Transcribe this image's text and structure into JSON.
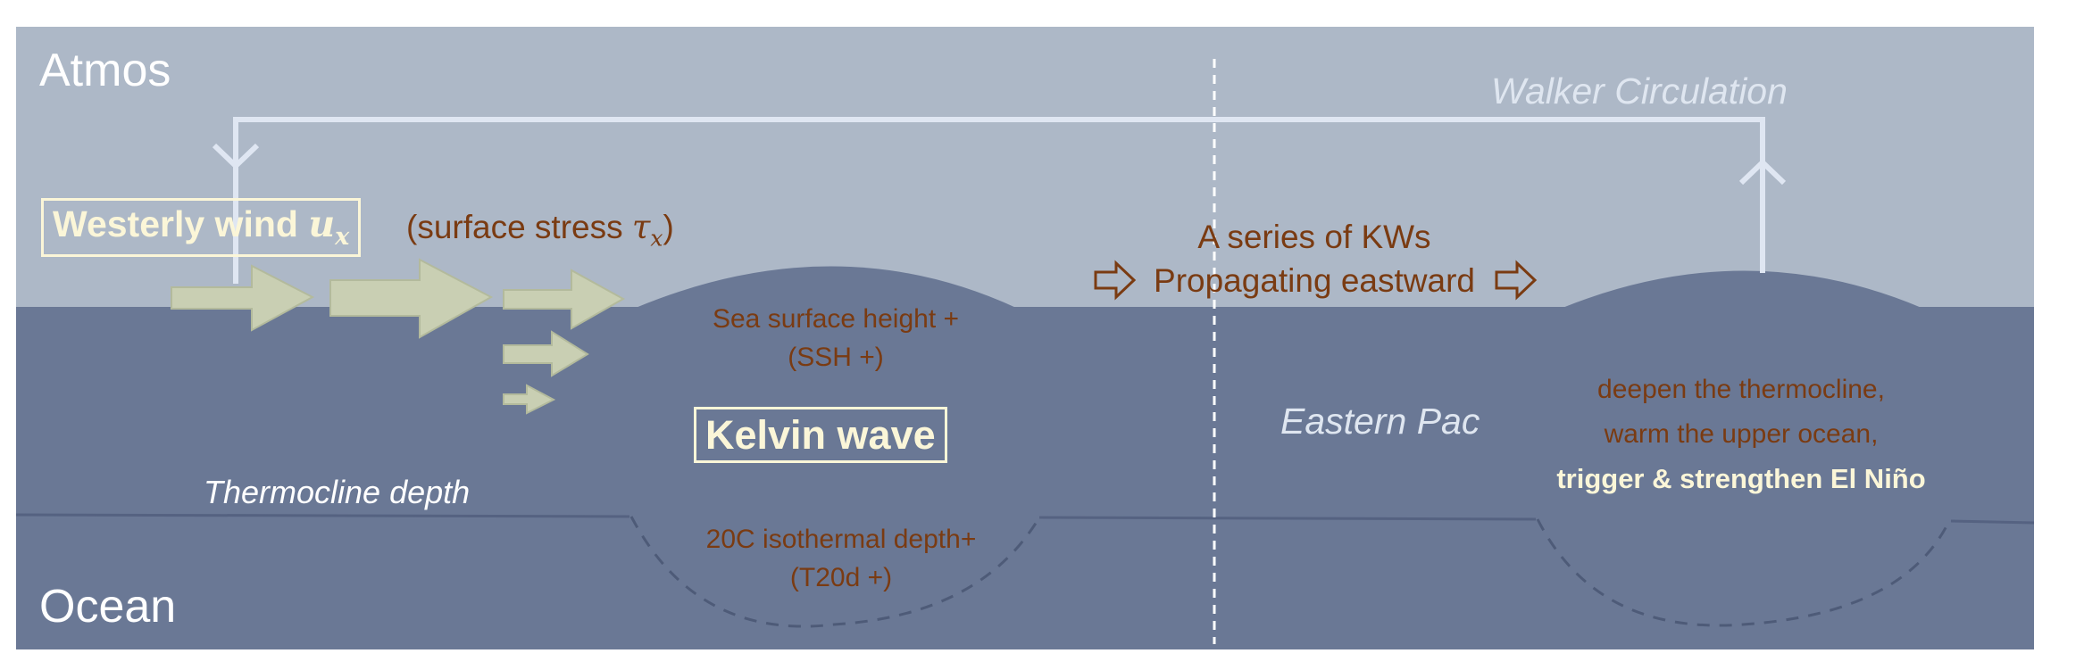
{
  "atmos_label": "Atmos",
  "ocean_label": "Ocean",
  "walker_label": "Walker Circulation",
  "westerly_label": "Westerly wind ",
  "westerly_symbol": "u",
  "westerly_subscript": "x",
  "stress_open": "(surface stress ",
  "stress_symbol": "τ",
  "stress_subscript": "x",
  "stress_close": ")",
  "series_line1": "A series of KWs",
  "series_line2": "Propagating eastward",
  "ssh_line1": "Sea surface height +",
  "ssh_line2": "(SSH +)",
  "kelvin_label": "Kelvin wave",
  "t20_line1": "20C isothermal depth+",
  "t20_line2": "(T20d +)",
  "thermocline_label": "Thermocline depth",
  "eastern_label": "Eastern Pac",
  "effect_line1": "deepen the thermocline,",
  "effect_line2": "warm the upper ocean,",
  "effect_line3": "trigger & strengthen El Niño",
  "colors": {
    "atmosphere": "#adb8c7",
    "ocean": "#6a7895",
    "wind_arrow": "#c9cfb3",
    "circulation": "#dfe6f2",
    "text_brown": "#7a3b12",
    "text_cream": "#fbf6d8"
  }
}
